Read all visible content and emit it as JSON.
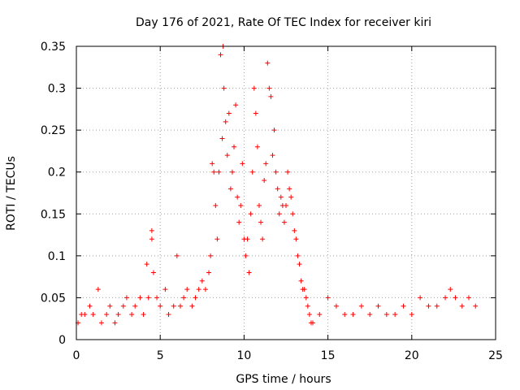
{
  "chart_data": {
    "type": "scatter",
    "title": "Day 176 of 2021, Rate Of TEC Index for receiver kiri",
    "xlabel": "GPS time / hours",
    "ylabel": "ROTI / TECUs",
    "xlim": [
      0,
      25
    ],
    "ylim": [
      0,
      0.35
    ],
    "x_ticks": [
      "0",
      "5",
      "10",
      "15",
      "20",
      "25"
    ],
    "y_ticks": [
      "0",
      "0.05",
      "0.1",
      "0.15",
      "0.2",
      "0.25",
      "0.3",
      "0.35"
    ],
    "grid": true,
    "marker": "+",
    "color": "#ff0000",
    "legend": "none",
    "series": [
      {
        "x": [
          0.1,
          0.3,
          0.5,
          0.8,
          1.0,
          1.3,
          1.5,
          1.8,
          2.0,
          2.3,
          2.5,
          2.8,
          3.0,
          3.3,
          3.5,
          3.8,
          4.0,
          4.2,
          4.3,
          4.5,
          4.5,
          4.6,
          4.8,
          5.0,
          5.3,
          5.5,
          5.8,
          6.0,
          6.2,
          6.4,
          6.6,
          6.9,
          7.1,
          7.3,
          7.5,
          7.7,
          7.9,
          8.0,
          8.1,
          8.2,
          8.3,
          8.4,
          8.5,
          8.6,
          8.7,
          8.75,
          8.8,
          8.9,
          9.0,
          9.1,
          9.2,
          9.3,
          9.4,
          9.5,
          9.6,
          9.7,
          9.8,
          9.9,
          10.0,
          10.1,
          10.2,
          10.3,
          10.4,
          10.5,
          10.6,
          10.7,
          10.8,
          10.9,
          11.0,
          11.1,
          11.2,
          11.3,
          11.4,
          11.5,
          11.6,
          11.7,
          11.8,
          11.9,
          12.0,
          12.1,
          12.2,
          12.3,
          12.4,
          12.5,
          12.6,
          12.7,
          12.8,
          12.9,
          13.0,
          13.1,
          13.2,
          13.3,
          13.4,
          13.5,
          13.6,
          13.7,
          13.8,
          13.9,
          14.0,
          14.1,
          14.5,
          15.0,
          15.5,
          16.0,
          16.5,
          17.0,
          17.5,
          18.0,
          18.5,
          19.0,
          19.5,
          20.0,
          20.5,
          21.0,
          21.5,
          22.0,
          22.3,
          22.6,
          23.0,
          23.4,
          23.8
        ],
        "y": [
          0.02,
          0.03,
          0.03,
          0.04,
          0.03,
          0.06,
          0.02,
          0.03,
          0.04,
          0.02,
          0.03,
          0.04,
          0.05,
          0.03,
          0.04,
          0.05,
          0.03,
          0.09,
          0.05,
          0.13,
          0.12,
          0.08,
          0.05,
          0.04,
          0.06,
          0.03,
          0.04,
          0.1,
          0.04,
          0.05,
          0.06,
          0.04,
          0.05,
          0.06,
          0.07,
          0.06,
          0.08,
          0.1,
          0.21,
          0.2,
          0.16,
          0.12,
          0.2,
          0.34,
          0.24,
          0.35,
          0.3,
          0.26,
          0.22,
          0.27,
          0.18,
          0.2,
          0.23,
          0.28,
          0.17,
          0.14,
          0.16,
          0.21,
          0.12,
          0.1,
          0.12,
          0.08,
          0.15,
          0.2,
          0.3,
          0.27,
          0.23,
          0.16,
          0.14,
          0.12,
          0.19,
          0.21,
          0.33,
          0.3,
          0.29,
          0.22,
          0.25,
          0.2,
          0.18,
          0.15,
          0.17,
          0.16,
          0.14,
          0.16,
          0.2,
          0.18,
          0.17,
          0.15,
          0.13,
          0.12,
          0.1,
          0.09,
          0.07,
          0.06,
          0.06,
          0.05,
          0.04,
          0.03,
          0.02,
          0.02,
          0.03,
          0.05,
          0.04,
          0.03,
          0.03,
          0.04,
          0.03,
          0.04,
          0.03,
          0.03,
          0.04,
          0.03,
          0.05,
          0.04,
          0.04,
          0.05,
          0.06,
          0.05,
          0.04,
          0.05,
          0.04
        ]
      }
    ]
  }
}
